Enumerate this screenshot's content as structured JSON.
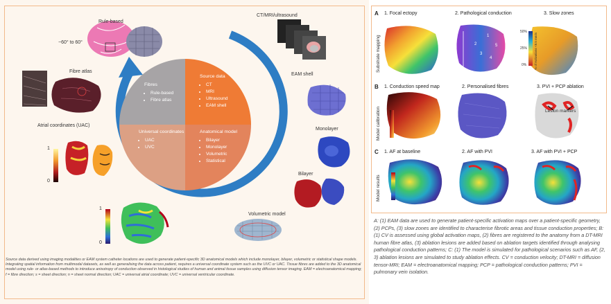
{
  "left_panel": {
    "labels": {
      "rule_based": "Rule-based",
      "angle": "−60° to 60°",
      "fibre_atlas": "Fibre atlas",
      "ct_mri": "CT/MRI/ultrasound",
      "eam_shell": "EAM shell",
      "atrial_coords": "Atrial coordinates (UAC)",
      "monolayer": "Monolayer",
      "bilayer": "Bilayer",
      "volumetric": "Volumetric model",
      "scale_one": "1",
      "scale_zero": "0"
    },
    "wedges": {
      "fibres": {
        "title": "Fibres",
        "items": [
          "Rule-based",
          "Fibre atlas"
        ]
      },
      "source": {
        "title": "Source data",
        "items": [
          "CT",
          "MRI",
          "Ultrasound",
          "EAM shell"
        ]
      },
      "universal": {
        "title": "Universal coordinates",
        "items": [
          "UAC",
          "UVC"
        ]
      },
      "anatomical": {
        "title": "Anatomical model",
        "items": [
          "Bilayer",
          "Monolayer",
          "Volumetric",
          "Statistical"
        ]
      }
    },
    "colors": {
      "fibres": "#a7a4a6",
      "source": "#ef7b35",
      "universal": "#dca084",
      "anatomical": "#e3845c",
      "arrow": "#2e7dc4"
    },
    "caption": "Source data derived using imaging modalities or EAM system catheter locations are used to generate patient-specific 3D anatomical models which include monolayer, bilayer, volumetric or statistical shape models. Integrating spatial information from multimodal datasets, as well as generalising the data across patient, requires a universal coordinate system such as the UVC or UAC. Tissue fibres are added to the 3D anatomical model using rule- or atlas-based methods to introduce anisotropy of conduction observed in histological studies of human and animal tissue samples using diffusion tensor imaging. EAM = electroanatomical mapping; f = fibre direction; s = sheet direction; n = sheet normal direction; UAC = universal atrial coordinate; UVC = universal ventricular coordinate."
  },
  "right_panel": {
    "rows": [
      {
        "letter": "A",
        "side": "Substrate mapping",
        "items": [
          "1. Focal ectopy",
          "2. Pathological conduction",
          "3. Slow zones"
        ]
      },
      {
        "letter": "B",
        "side": "Model calibration",
        "items": [
          "1. Conduction speed map",
          "2. Personalised fibres",
          "3. PVI + PCP ablation"
        ]
      },
      {
        "letter": "C",
        "side": "Model results",
        "items": [
          "1. AF at baseline",
          "2. AF with PVI",
          "3. AF with PVI + PCP"
        ]
      }
    ],
    "slow_zone_scale": {
      "top": "50%",
      "mid": "25%",
      "bottom": "0%",
      "label": "% of Activations <8.5 mm/s"
    },
    "lesion_label": "Lesion markers",
    "numbers": [
      "1",
      "2",
      "3",
      "4",
      "5"
    ],
    "caption": "A: (1) EAM data are used to generate patient-specific activation maps over a patient-specific geometry, (2) PCPs, (3) slow zones are identified to characterise fibrotic areas and tissue conduction properties; B: (1) CV is assessed using global activation maps, (2) fibres are registered to the anatomy from a DT-MRI human fibre atlas, (3) ablation lesions are added based on ablation targets identified through analysing pathological conduction patterns; C: (1) The model is simulated for pathological scenarios such as AF, (2, 3) ablation lesions are simulated to study ablation effects. CV = conduction velocity; DT-MRI = diffusion tensor-MRI; EAM = electroanatomical mapping; PCP = pathological conduction patterns; PVI = pulmonary vein isolation."
  }
}
